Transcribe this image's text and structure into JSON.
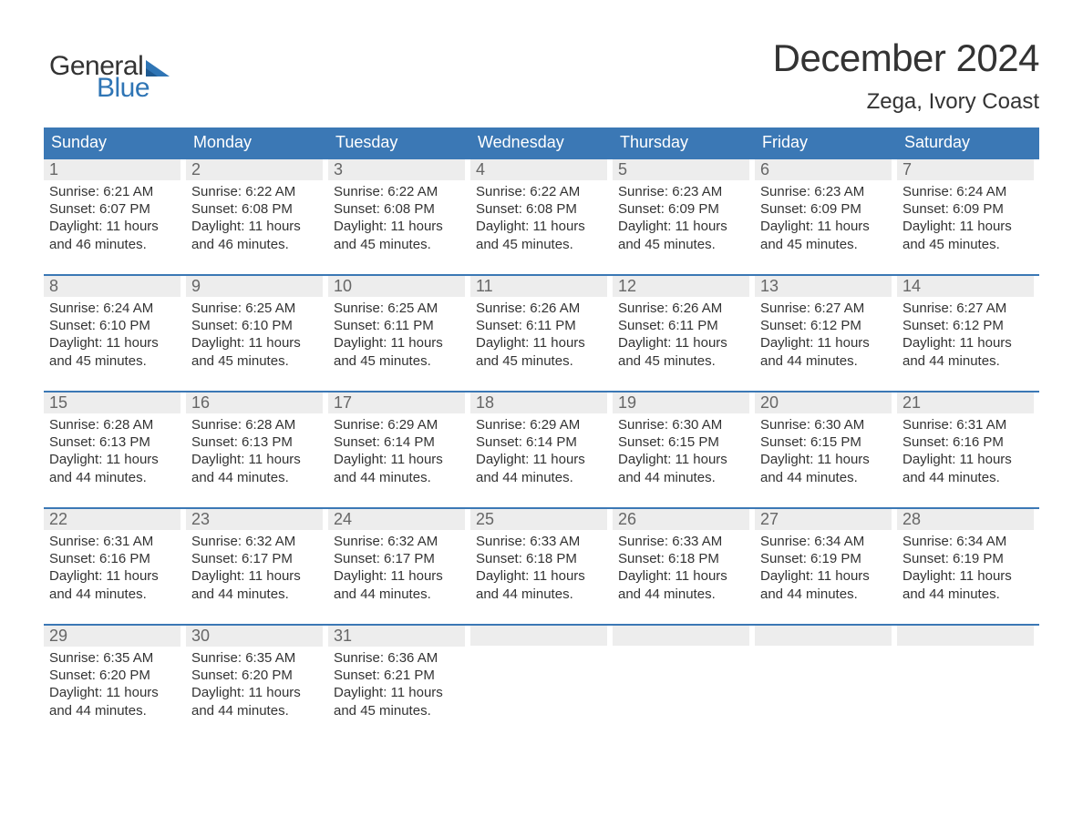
{
  "logo": {
    "text1": "General",
    "text2": "Blue",
    "flag_color": "#2f75b5"
  },
  "title": "December 2024",
  "location": "Zega, Ivory Coast",
  "colors": {
    "header_bg": "#3b78b5",
    "header_text": "#ffffff",
    "week_border": "#3b78b5",
    "daynum_bg": "#ededed",
    "daynum_text": "#666666",
    "body_text": "#333333",
    "background": "#ffffff",
    "logo_blue": "#2f75b5"
  },
  "typography": {
    "title_fontsize": 42,
    "location_fontsize": 24,
    "weekday_fontsize": 18,
    "daynum_fontsize": 18,
    "content_fontsize": 15,
    "logo_fontsize": 30
  },
  "weekdays": [
    "Sunday",
    "Monday",
    "Tuesday",
    "Wednesday",
    "Thursday",
    "Friday",
    "Saturday"
  ],
  "labels": {
    "sunrise": "Sunrise:",
    "sunset": "Sunset:",
    "daylight": "Daylight:"
  },
  "weeks": [
    [
      {
        "day": "1",
        "sunrise": "6:21 AM",
        "sunset": "6:07 PM",
        "daylight": "11 hours and 46 minutes."
      },
      {
        "day": "2",
        "sunrise": "6:22 AM",
        "sunset": "6:08 PM",
        "daylight": "11 hours and 46 minutes."
      },
      {
        "day": "3",
        "sunrise": "6:22 AM",
        "sunset": "6:08 PM",
        "daylight": "11 hours and 45 minutes."
      },
      {
        "day": "4",
        "sunrise": "6:22 AM",
        "sunset": "6:08 PM",
        "daylight": "11 hours and 45 minutes."
      },
      {
        "day": "5",
        "sunrise": "6:23 AM",
        "sunset": "6:09 PM",
        "daylight": "11 hours and 45 minutes."
      },
      {
        "day": "6",
        "sunrise": "6:23 AM",
        "sunset": "6:09 PM",
        "daylight": "11 hours and 45 minutes."
      },
      {
        "day": "7",
        "sunrise": "6:24 AM",
        "sunset": "6:09 PM",
        "daylight": "11 hours and 45 minutes."
      }
    ],
    [
      {
        "day": "8",
        "sunrise": "6:24 AM",
        "sunset": "6:10 PM",
        "daylight": "11 hours and 45 minutes."
      },
      {
        "day": "9",
        "sunrise": "6:25 AM",
        "sunset": "6:10 PM",
        "daylight": "11 hours and 45 minutes."
      },
      {
        "day": "10",
        "sunrise": "6:25 AM",
        "sunset": "6:11 PM",
        "daylight": "11 hours and 45 minutes."
      },
      {
        "day": "11",
        "sunrise": "6:26 AM",
        "sunset": "6:11 PM",
        "daylight": "11 hours and 45 minutes."
      },
      {
        "day": "12",
        "sunrise": "6:26 AM",
        "sunset": "6:11 PM",
        "daylight": "11 hours and 45 minutes."
      },
      {
        "day": "13",
        "sunrise": "6:27 AM",
        "sunset": "6:12 PM",
        "daylight": "11 hours and 44 minutes."
      },
      {
        "day": "14",
        "sunrise": "6:27 AM",
        "sunset": "6:12 PM",
        "daylight": "11 hours and 44 minutes."
      }
    ],
    [
      {
        "day": "15",
        "sunrise": "6:28 AM",
        "sunset": "6:13 PM",
        "daylight": "11 hours and 44 minutes."
      },
      {
        "day": "16",
        "sunrise": "6:28 AM",
        "sunset": "6:13 PM",
        "daylight": "11 hours and 44 minutes."
      },
      {
        "day": "17",
        "sunrise": "6:29 AM",
        "sunset": "6:14 PM",
        "daylight": "11 hours and 44 minutes."
      },
      {
        "day": "18",
        "sunrise": "6:29 AM",
        "sunset": "6:14 PM",
        "daylight": "11 hours and 44 minutes."
      },
      {
        "day": "19",
        "sunrise": "6:30 AM",
        "sunset": "6:15 PM",
        "daylight": "11 hours and 44 minutes."
      },
      {
        "day": "20",
        "sunrise": "6:30 AM",
        "sunset": "6:15 PM",
        "daylight": "11 hours and 44 minutes."
      },
      {
        "day": "21",
        "sunrise": "6:31 AM",
        "sunset": "6:16 PM",
        "daylight": "11 hours and 44 minutes."
      }
    ],
    [
      {
        "day": "22",
        "sunrise": "6:31 AM",
        "sunset": "6:16 PM",
        "daylight": "11 hours and 44 minutes."
      },
      {
        "day": "23",
        "sunrise": "6:32 AM",
        "sunset": "6:17 PM",
        "daylight": "11 hours and 44 minutes."
      },
      {
        "day": "24",
        "sunrise": "6:32 AM",
        "sunset": "6:17 PM",
        "daylight": "11 hours and 44 minutes."
      },
      {
        "day": "25",
        "sunrise": "6:33 AM",
        "sunset": "6:18 PM",
        "daylight": "11 hours and 44 minutes."
      },
      {
        "day": "26",
        "sunrise": "6:33 AM",
        "sunset": "6:18 PM",
        "daylight": "11 hours and 44 minutes."
      },
      {
        "day": "27",
        "sunrise": "6:34 AM",
        "sunset": "6:19 PM",
        "daylight": "11 hours and 44 minutes."
      },
      {
        "day": "28",
        "sunrise": "6:34 AM",
        "sunset": "6:19 PM",
        "daylight": "11 hours and 44 minutes."
      }
    ],
    [
      {
        "day": "29",
        "sunrise": "6:35 AM",
        "sunset": "6:20 PM",
        "daylight": "11 hours and 44 minutes."
      },
      {
        "day": "30",
        "sunrise": "6:35 AM",
        "sunset": "6:20 PM",
        "daylight": "11 hours and 44 minutes."
      },
      {
        "day": "31",
        "sunrise": "6:36 AM",
        "sunset": "6:21 PM",
        "daylight": "11 hours and 45 minutes."
      },
      {
        "empty": true
      },
      {
        "empty": true
      },
      {
        "empty": true
      },
      {
        "empty": true
      }
    ]
  ]
}
